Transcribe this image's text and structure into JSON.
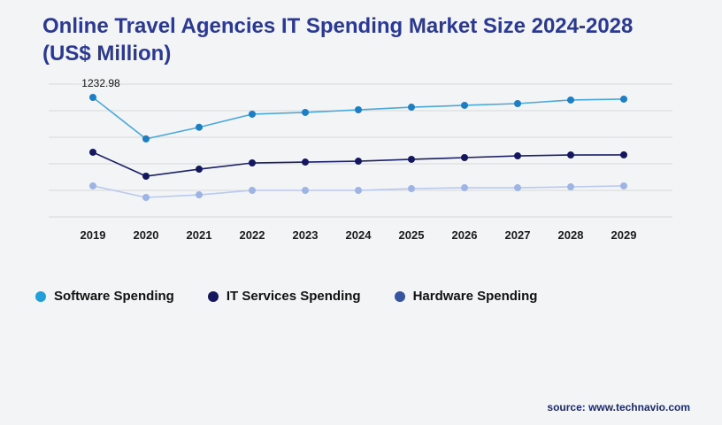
{
  "title": "Online Travel Agencies IT Spending Market Size 2024-2028 (US$ Million)",
  "source": "source: www.technavio.com",
  "colors": {
    "title": "#2b3990",
    "grid": "#d6d8db",
    "axis_label": "#1a1a1a",
    "background": "#f3f4f6",
    "source": "#1b2a6b",
    "annotation_text": "#111111"
  },
  "chart_data": {
    "type": "line",
    "x": [
      "2019",
      "2020",
      "2021",
      "2022",
      "2023",
      "2024",
      "2025",
      "2026",
      "2027",
      "2028",
      "2029"
    ],
    "series": [
      {
        "name": "Software Spending",
        "line_color": "#4aa9da",
        "marker_color": "#1d7ec4",
        "legend_color": "#229fd8",
        "values": [
          1232.98,
          805,
          925,
          1060,
          1078,
          1105,
          1132,
          1151,
          1169,
          1206,
          1215
        ]
      },
      {
        "name": "IT Services Spending",
        "line_color": "#1b2066",
        "marker_color": "#14175e",
        "legend_color": "#14175e",
        "values": [
          667,
          420,
          493,
          557,
          566,
          575,
          594,
          612,
          630,
          639,
          640
        ]
      },
      {
        "name": "Hardware Spending",
        "line_color": "#b9c9f0",
        "marker_color": "#9db4e4",
        "legend_color": "#37549e",
        "values": [
          320,
          201,
          228,
          274,
          274,
          274,
          292,
          301,
          301,
          310,
          320
        ]
      }
    ],
    "ylim": [
      0,
      1370
    ],
    "gridline_count": 6,
    "grid": "horizontal",
    "legend_position": "bottom-left",
    "xlabel": "",
    "ylabel": "",
    "annotation": {
      "text": "1232.98",
      "series": "Software Spending",
      "x": "2019"
    }
  }
}
